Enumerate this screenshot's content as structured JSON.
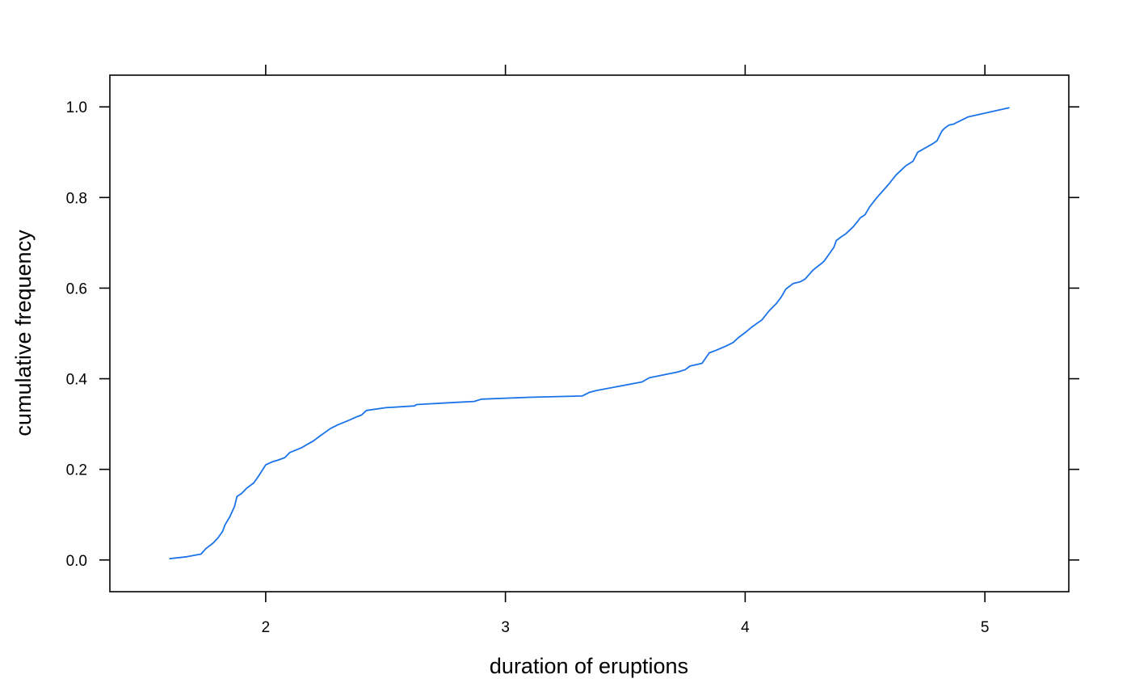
{
  "chart_data": {
    "type": "line",
    "title": "",
    "xlabel": "duration of eruptions",
    "ylabel": "cumulative frequency",
    "xlim": [
      1.35,
      5.35
    ],
    "ylim": [
      -0.07,
      1.07
    ],
    "x_ticks": [
      2,
      3,
      4,
      5
    ],
    "x_tick_labels": [
      "2",
      "3",
      "4",
      "5"
    ],
    "y_ticks": [
      0.0,
      0.2,
      0.4,
      0.6,
      0.8,
      1.0
    ],
    "y_tick_labels": [
      "0.0",
      "0.2",
      "0.4",
      "0.6",
      "0.8",
      "1.0"
    ],
    "grid": false,
    "line_color": "#1a73e8",
    "series": [
      {
        "x": [
          1.6,
          1.67,
          1.73,
          1.75,
          1.78,
          1.8,
          1.82,
          1.83,
          1.85,
          1.87,
          1.88,
          1.9,
          1.92,
          1.95,
          1.97,
          2.0,
          2.03,
          2.05,
          2.08,
          2.1,
          2.15,
          2.18,
          2.2,
          2.23,
          2.27,
          2.3,
          2.35,
          2.38,
          2.4,
          2.42,
          2.5,
          2.62,
          2.63,
          2.8,
          2.87,
          2.9,
          3.1,
          3.32,
          3.35,
          3.38,
          3.42,
          3.57,
          3.6,
          3.72,
          3.75,
          3.77,
          3.82,
          3.85,
          3.88,
          3.92,
          3.95,
          3.97,
          4.0,
          4.03,
          4.07,
          4.1,
          4.13,
          4.15,
          4.17,
          4.2,
          4.23,
          4.25,
          4.28,
          4.3,
          4.32,
          4.33,
          4.35,
          4.37,
          4.38,
          4.4,
          4.42,
          4.45,
          4.47,
          4.48,
          4.5,
          4.52,
          4.55,
          4.57,
          4.6,
          4.63,
          4.65,
          4.67,
          4.7,
          4.72,
          4.78,
          4.8,
          4.82,
          4.83,
          4.85,
          4.87,
          4.88,
          4.9,
          4.93,
          5.1
        ],
        "y": [
          0.003,
          0.007,
          0.013,
          0.025,
          0.037,
          0.048,
          0.063,
          0.077,
          0.095,
          0.118,
          0.14,
          0.147,
          0.158,
          0.17,
          0.185,
          0.21,
          0.217,
          0.22,
          0.226,
          0.237,
          0.248,
          0.257,
          0.263,
          0.275,
          0.29,
          0.298,
          0.309,
          0.316,
          0.32,
          0.33,
          0.336,
          0.34,
          0.343,
          0.348,
          0.35,
          0.355,
          0.359,
          0.362,
          0.37,
          0.374,
          0.378,
          0.393,
          0.402,
          0.415,
          0.42,
          0.428,
          0.434,
          0.457,
          0.463,
          0.472,
          0.48,
          0.49,
          0.502,
          0.515,
          0.53,
          0.55,
          0.566,
          0.58,
          0.598,
          0.61,
          0.614,
          0.62,
          0.638,
          0.647,
          0.655,
          0.66,
          0.675,
          0.69,
          0.705,
          0.713,
          0.72,
          0.735,
          0.748,
          0.755,
          0.762,
          0.78,
          0.8,
          0.812,
          0.83,
          0.85,
          0.86,
          0.87,
          0.88,
          0.9,
          0.918,
          0.925,
          0.946,
          0.952,
          0.96,
          0.962,
          0.965,
          0.97,
          0.978,
          0.998
        ]
      }
    ]
  }
}
